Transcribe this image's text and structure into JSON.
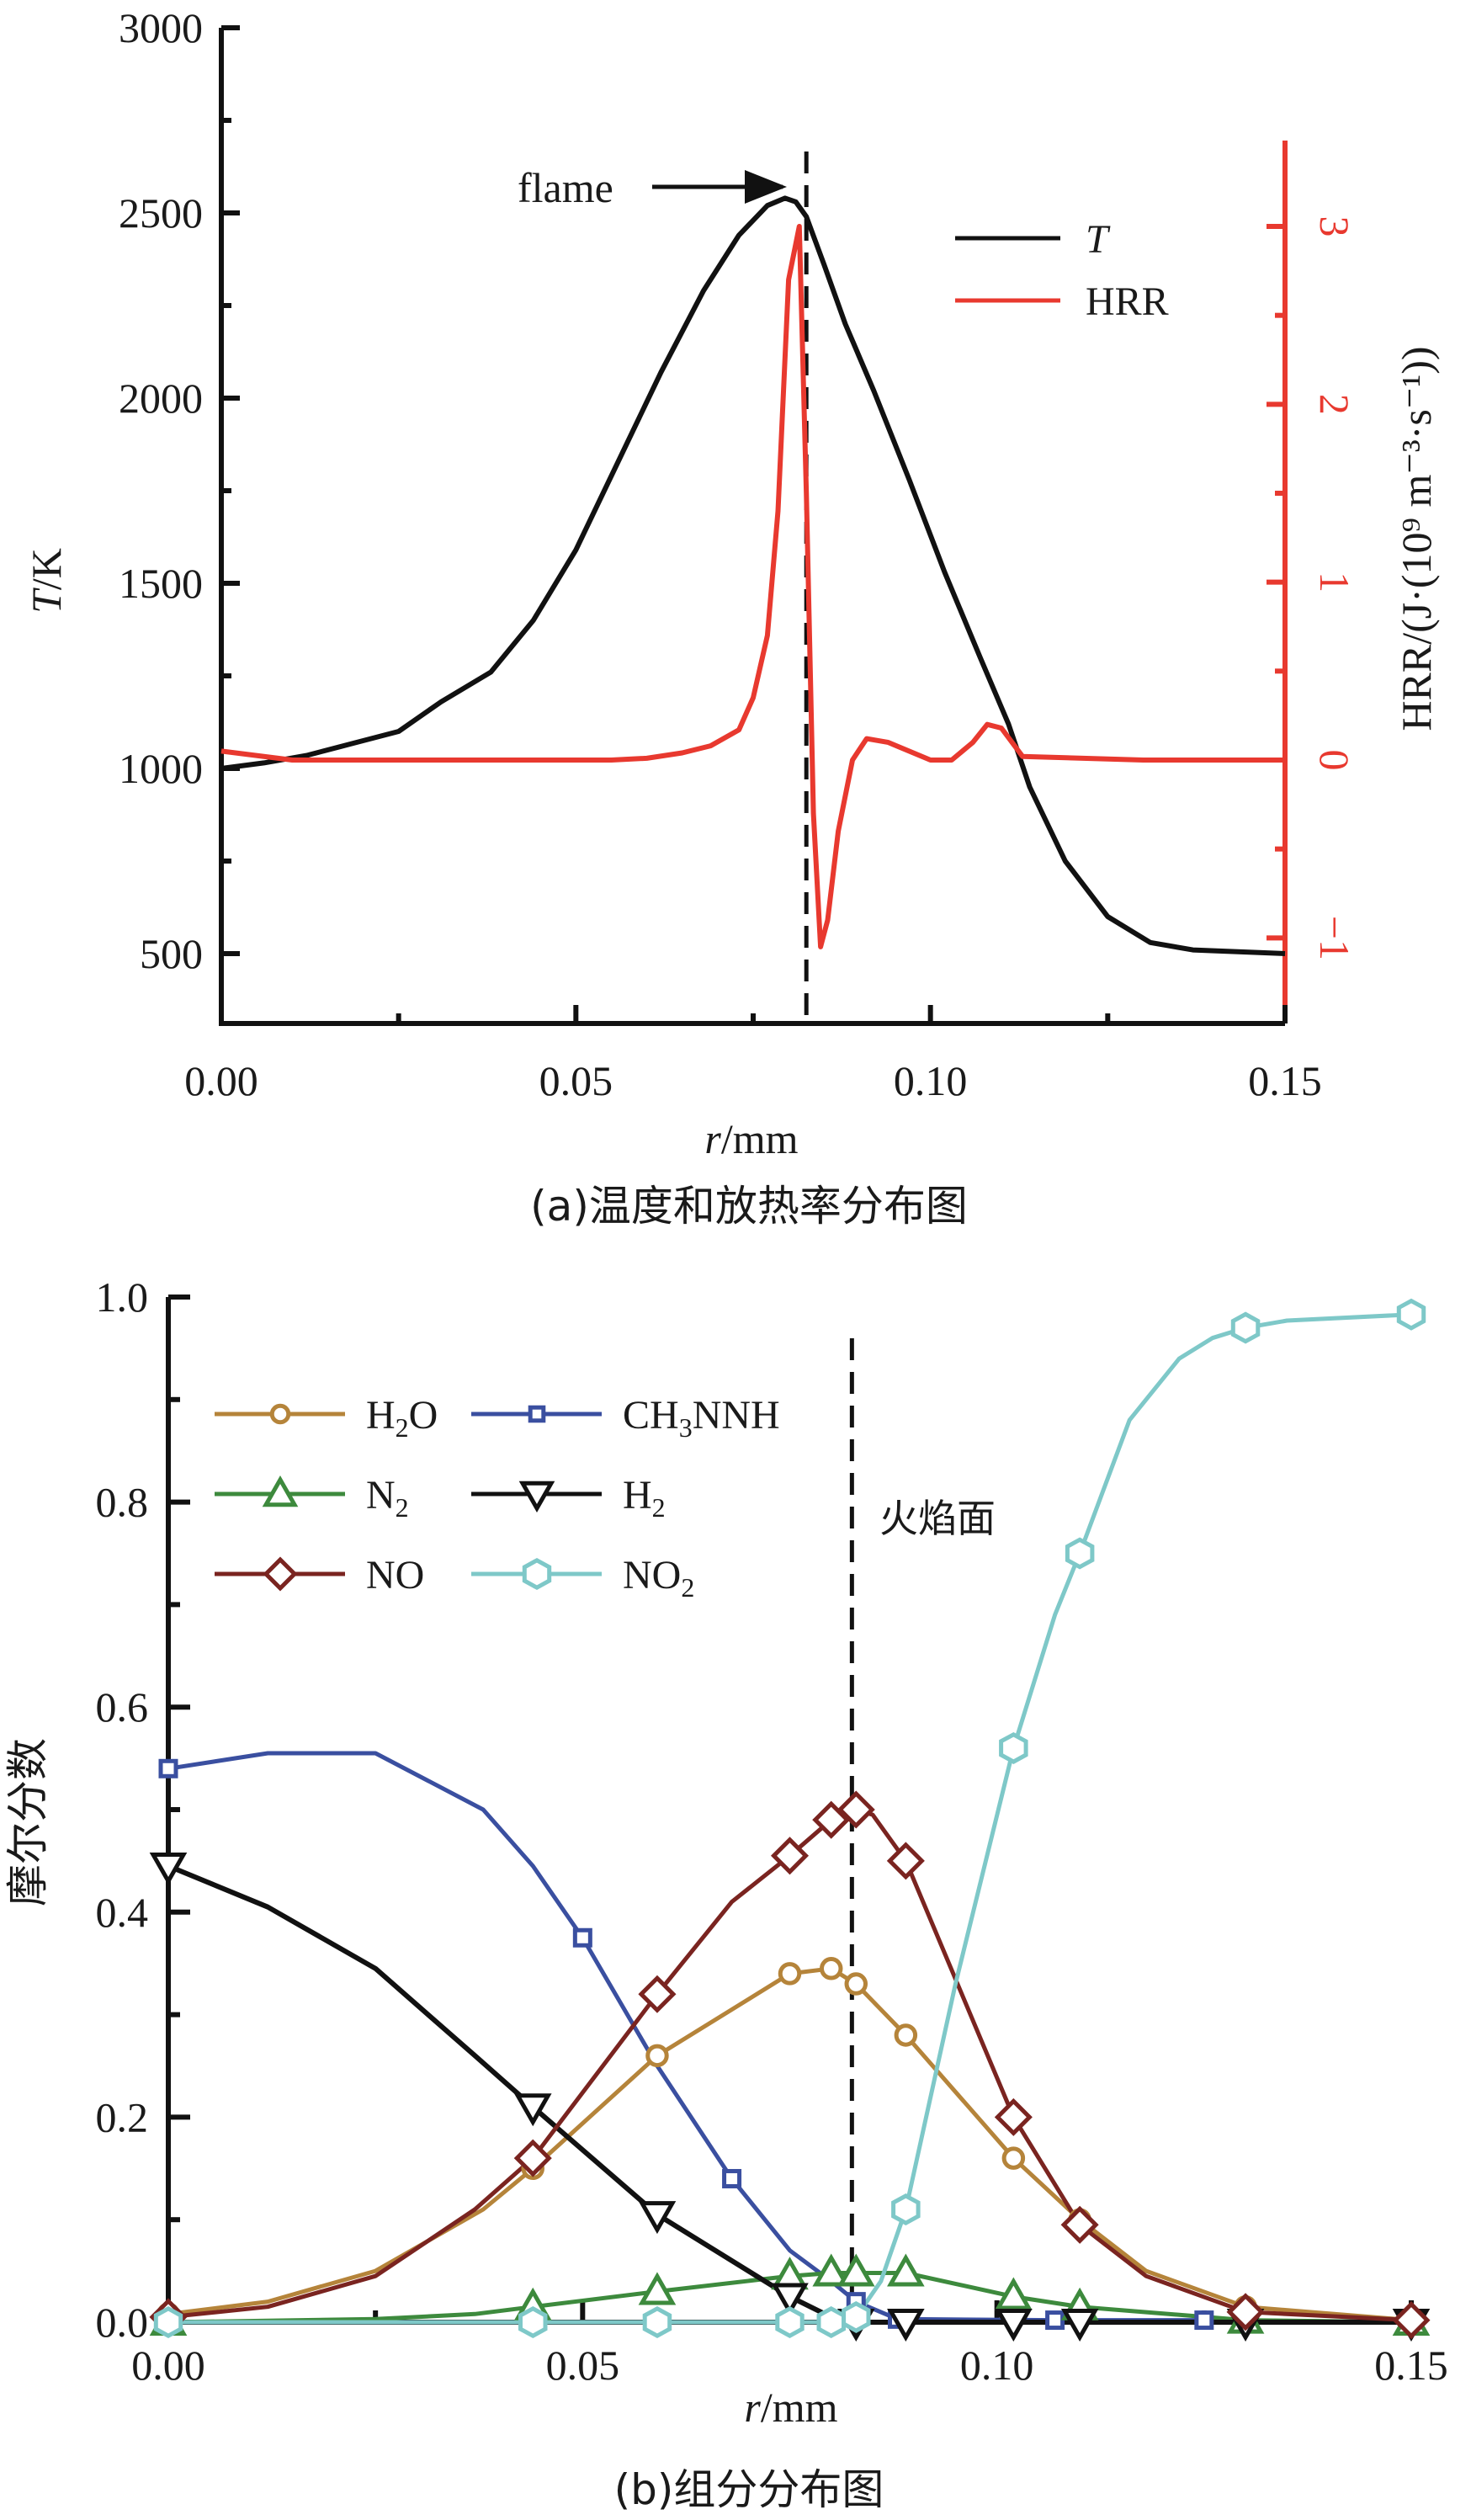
{
  "chart_data": [
    {
      "id": "a",
      "type": "line",
      "caption": "(a)温度和放热率分布图",
      "xlabel_italic": "r",
      "xlabel_rest": "/mm",
      "ylabel_italic": "T",
      "ylabel_rest": "/K",
      "y2label": "HRR/(J·(10⁹ m⁻³·s⁻¹))",
      "xlim": [
        0,
        0.15
      ],
      "ylim": [
        270,
        3000
      ],
      "y2lim": [
        -1.3,
        3.4
      ],
      "xticks": [
        0.0,
        0.05,
        0.1,
        0.15
      ],
      "xtick_labels": [
        "0.00",
        "0.05",
        "0.10",
        "0.15"
      ],
      "xminor": [
        0.025,
        0.075,
        0.125
      ],
      "yticks": [
        500,
        1000,
        1500,
        2000,
        2500,
        3000
      ],
      "ytick_labels": [
        "500",
        "1000",
        "1500",
        "2000",
        "2500",
        "3000"
      ],
      "yminor": [
        750,
        1250,
        1750,
        2250,
        2750
      ],
      "y2ticks": [
        -1,
        0,
        1,
        2,
        3
      ],
      "y2tick_labels": [
        "−1",
        "0",
        "1",
        "2",
        "3"
      ],
      "y2minor": [
        -0.5,
        0.5,
        1.5,
        2.5
      ],
      "annotation": {
        "text": "flame",
        "x": 0.0825
      },
      "flame_line_x": 0.0825,
      "legend": {
        "position": "top-right",
        "entries": [
          {
            "label": "T",
            "italic": true,
            "color": "#111111"
          },
          {
            "label": "HRR",
            "italic": false,
            "color": "#e8392f"
          }
        ]
      },
      "series": [
        {
          "name": "T",
          "axis": "left",
          "color": "#111111",
          "x": [
            0.0,
            0.006,
            0.012,
            0.018,
            0.025,
            0.031,
            0.038,
            0.044,
            0.05,
            0.056,
            0.062,
            0.068,
            0.073,
            0.077,
            0.0795,
            0.081,
            0.0825,
            0.085,
            0.088,
            0.092,
            0.097,
            0.102,
            0.107,
            0.111,
            0.114,
            0.119,
            0.125,
            0.131,
            0.137,
            0.15
          ],
          "y": [
            1000,
            1015,
            1035,
            1065,
            1100,
            1180,
            1260,
            1400,
            1590,
            1830,
            2070,
            2290,
            2440,
            2520,
            2540,
            2530,
            2490,
            2360,
            2200,
            2020,
            1780,
            1530,
            1300,
            1120,
            950,
            750,
            600,
            530,
            510,
            500
          ]
        },
        {
          "name": "HRR",
          "axis": "right",
          "color": "#e8392f",
          "x": [
            0.0,
            0.01,
            0.02,
            0.04,
            0.055,
            0.06,
            0.065,
            0.069,
            0.073,
            0.075,
            0.077,
            0.0785,
            0.08,
            0.0815,
            0.0825,
            0.0835,
            0.0845,
            0.0855,
            0.087,
            0.089,
            0.091,
            0.094,
            0.1,
            0.103,
            0.106,
            0.108,
            0.11,
            0.113,
            0.13,
            0.15
          ],
          "y": [
            0.05,
            0.0,
            0.0,
            0.0,
            0.0,
            0.01,
            0.04,
            0.08,
            0.17,
            0.35,
            0.7,
            1.4,
            2.7,
            3.0,
            1.5,
            -0.3,
            -1.05,
            -0.9,
            -0.4,
            0.0,
            0.12,
            0.1,
            0.0,
            0.0,
            0.1,
            0.2,
            0.18,
            0.02,
            0.0,
            0.0
          ]
        }
      ]
    },
    {
      "id": "b",
      "type": "line",
      "caption": "(b)组分分布图",
      "xlabel_italic": "r",
      "xlabel_rest": "/mm",
      "ylabel": "摩尔分数",
      "xlim": [
        0,
        0.15
      ],
      "ylim": [
        0,
        1.0
      ],
      "xticks": [
        0.0,
        0.05,
        0.1,
        0.15
      ],
      "xtick_labels": [
        "0.00",
        "0.05",
        "0.10",
        "0.15"
      ],
      "xminor": [
        0.025,
        0.075,
        0.125
      ],
      "yticks": [
        0.0,
        0.2,
        0.4,
        0.6,
        0.8,
        1.0
      ],
      "ytick_labels": [
        "0.0",
        "0.2",
        "0.4",
        "0.6",
        "0.8",
        "1.0"
      ],
      "yminor": [
        0.1,
        0.3,
        0.5,
        0.7,
        0.9
      ],
      "flame_line_x": 0.0825,
      "annotation": {
        "text": "火焰面"
      },
      "legend": {
        "position": "top-left",
        "columns": 2,
        "entries": [
          {
            "label": "H2O",
            "base": "H",
            "sub": "2",
            "tail": "O",
            "color": "#b5843a",
            "marker": "circle"
          },
          {
            "label": "CH3NNH",
            "base": "CH",
            "sub": "3",
            "tail": "NNH",
            "color": "#3a4fa0",
            "marker": "square"
          },
          {
            "label": "N2",
            "base": "N",
            "sub": "2",
            "tail": "",
            "color": "#3d8a3d",
            "marker": "triangle-up"
          },
          {
            "label": "H2",
            "base": "H",
            "sub": "2",
            "tail": "",
            "color": "#111111",
            "marker": "triangle-down"
          },
          {
            "label": "NO",
            "base": "NO",
            "sub": "",
            "tail": "",
            "color": "#7a2420",
            "marker": "diamond"
          },
          {
            "label": "NO2",
            "base": "NO",
            "sub": "2",
            "tail": "",
            "color": "#7ec8c8",
            "marker": "hexagon"
          }
        ]
      },
      "series": [
        {
          "name": "H2O",
          "color": "#b5843a",
          "marker": "circle",
          "x": [
            0.0,
            0.012,
            0.025,
            0.038,
            0.044,
            0.059,
            0.075,
            0.08,
            0.083,
            0.089,
            0.102,
            0.11,
            0.118,
            0.13,
            0.15
          ],
          "y": [
            0.008,
            0.02,
            0.05,
            0.11,
            0.15,
            0.26,
            0.34,
            0.345,
            0.33,
            0.28,
            0.16,
            0.1,
            0.05,
            0.015,
            0.002
          ],
          "markers": [
            0,
            4,
            5,
            6,
            7,
            8,
            9,
            10,
            11,
            13,
            14
          ]
        },
        {
          "name": "CH3NNH",
          "color": "#3a4fa0",
          "marker": "square",
          "x": [
            0.0,
            0.012,
            0.025,
            0.038,
            0.044,
            0.05,
            0.059,
            0.068,
            0.075,
            0.08,
            0.083,
            0.088,
            0.107,
            0.125,
            0.15
          ],
          "y": [
            0.54,
            0.555,
            0.555,
            0.5,
            0.445,
            0.375,
            0.25,
            0.14,
            0.07,
            0.04,
            0.02,
            0.003,
            0.002,
            0.002,
            0.0
          ],
          "markers": [
            0,
            5,
            7,
            10,
            11,
            12,
            13
          ]
        },
        {
          "name": "N2",
          "color": "#3d8a3d",
          "marker": "triangle-up",
          "x": [
            0.0,
            0.025,
            0.037,
            0.044,
            0.059,
            0.075,
            0.08,
            0.083,
            0.089,
            0.102,
            0.11,
            0.13,
            0.15
          ],
          "y": [
            0.0,
            0.003,
            0.008,
            0.015,
            0.03,
            0.045,
            0.048,
            0.048,
            0.048,
            0.025,
            0.015,
            0.002,
            0.0
          ],
          "markers": [
            0,
            3,
            4,
            5,
            6,
            7,
            8,
            9,
            10,
            11,
            12
          ]
        },
        {
          "name": "H2",
          "color": "#111111",
          "marker": "triangle-down",
          "x": [
            0.0,
            0.012,
            0.025,
            0.037,
            0.044,
            0.059,
            0.075,
            0.08,
            0.083,
            0.089,
            0.102,
            0.11,
            0.13,
            0.15
          ],
          "y": [
            0.445,
            0.405,
            0.345,
            0.26,
            0.21,
            0.105,
            0.025,
            0.005,
            0.0,
            0.0,
            0.0,
            0.0,
            0.0,
            0.0
          ],
          "markers": [
            0,
            4,
            5,
            6,
            8,
            9,
            10,
            11,
            12,
            13
          ]
        },
        {
          "name": "NO",
          "color": "#7a2420",
          "marker": "diamond",
          "x": [
            0.0,
            0.012,
            0.025,
            0.037,
            0.044,
            0.059,
            0.068,
            0.075,
            0.08,
            0.083,
            0.085,
            0.089,
            0.102,
            0.11,
            0.118,
            0.13,
            0.15
          ],
          "y": [
            0.005,
            0.015,
            0.045,
            0.11,
            0.16,
            0.32,
            0.41,
            0.455,
            0.49,
            0.5,
            0.495,
            0.45,
            0.2,
            0.095,
            0.045,
            0.01,
            0.002
          ],
          "markers": [
            0,
            4,
            5,
            7,
            8,
            9,
            11,
            12,
            13,
            15,
            16
          ]
        },
        {
          "name": "NO2",
          "color": "#7ec8c8",
          "marker": "hexagon",
          "x": [
            0.0,
            0.044,
            0.059,
            0.075,
            0.08,
            0.083,
            0.086,
            0.089,
            0.095,
            0.102,
            0.107,
            0.11,
            0.116,
            0.122,
            0.126,
            0.13,
            0.135,
            0.15
          ],
          "y": [
            0.0,
            0.0,
            0.0,
            0.0,
            0.0,
            0.005,
            0.04,
            0.11,
            0.33,
            0.56,
            0.69,
            0.75,
            0.88,
            0.94,
            0.96,
            0.97,
            0.977,
            0.983
          ],
          "markers": [
            0,
            1,
            2,
            3,
            4,
            5,
            7,
            9,
            11,
            15,
            17
          ]
        }
      ]
    }
  ]
}
